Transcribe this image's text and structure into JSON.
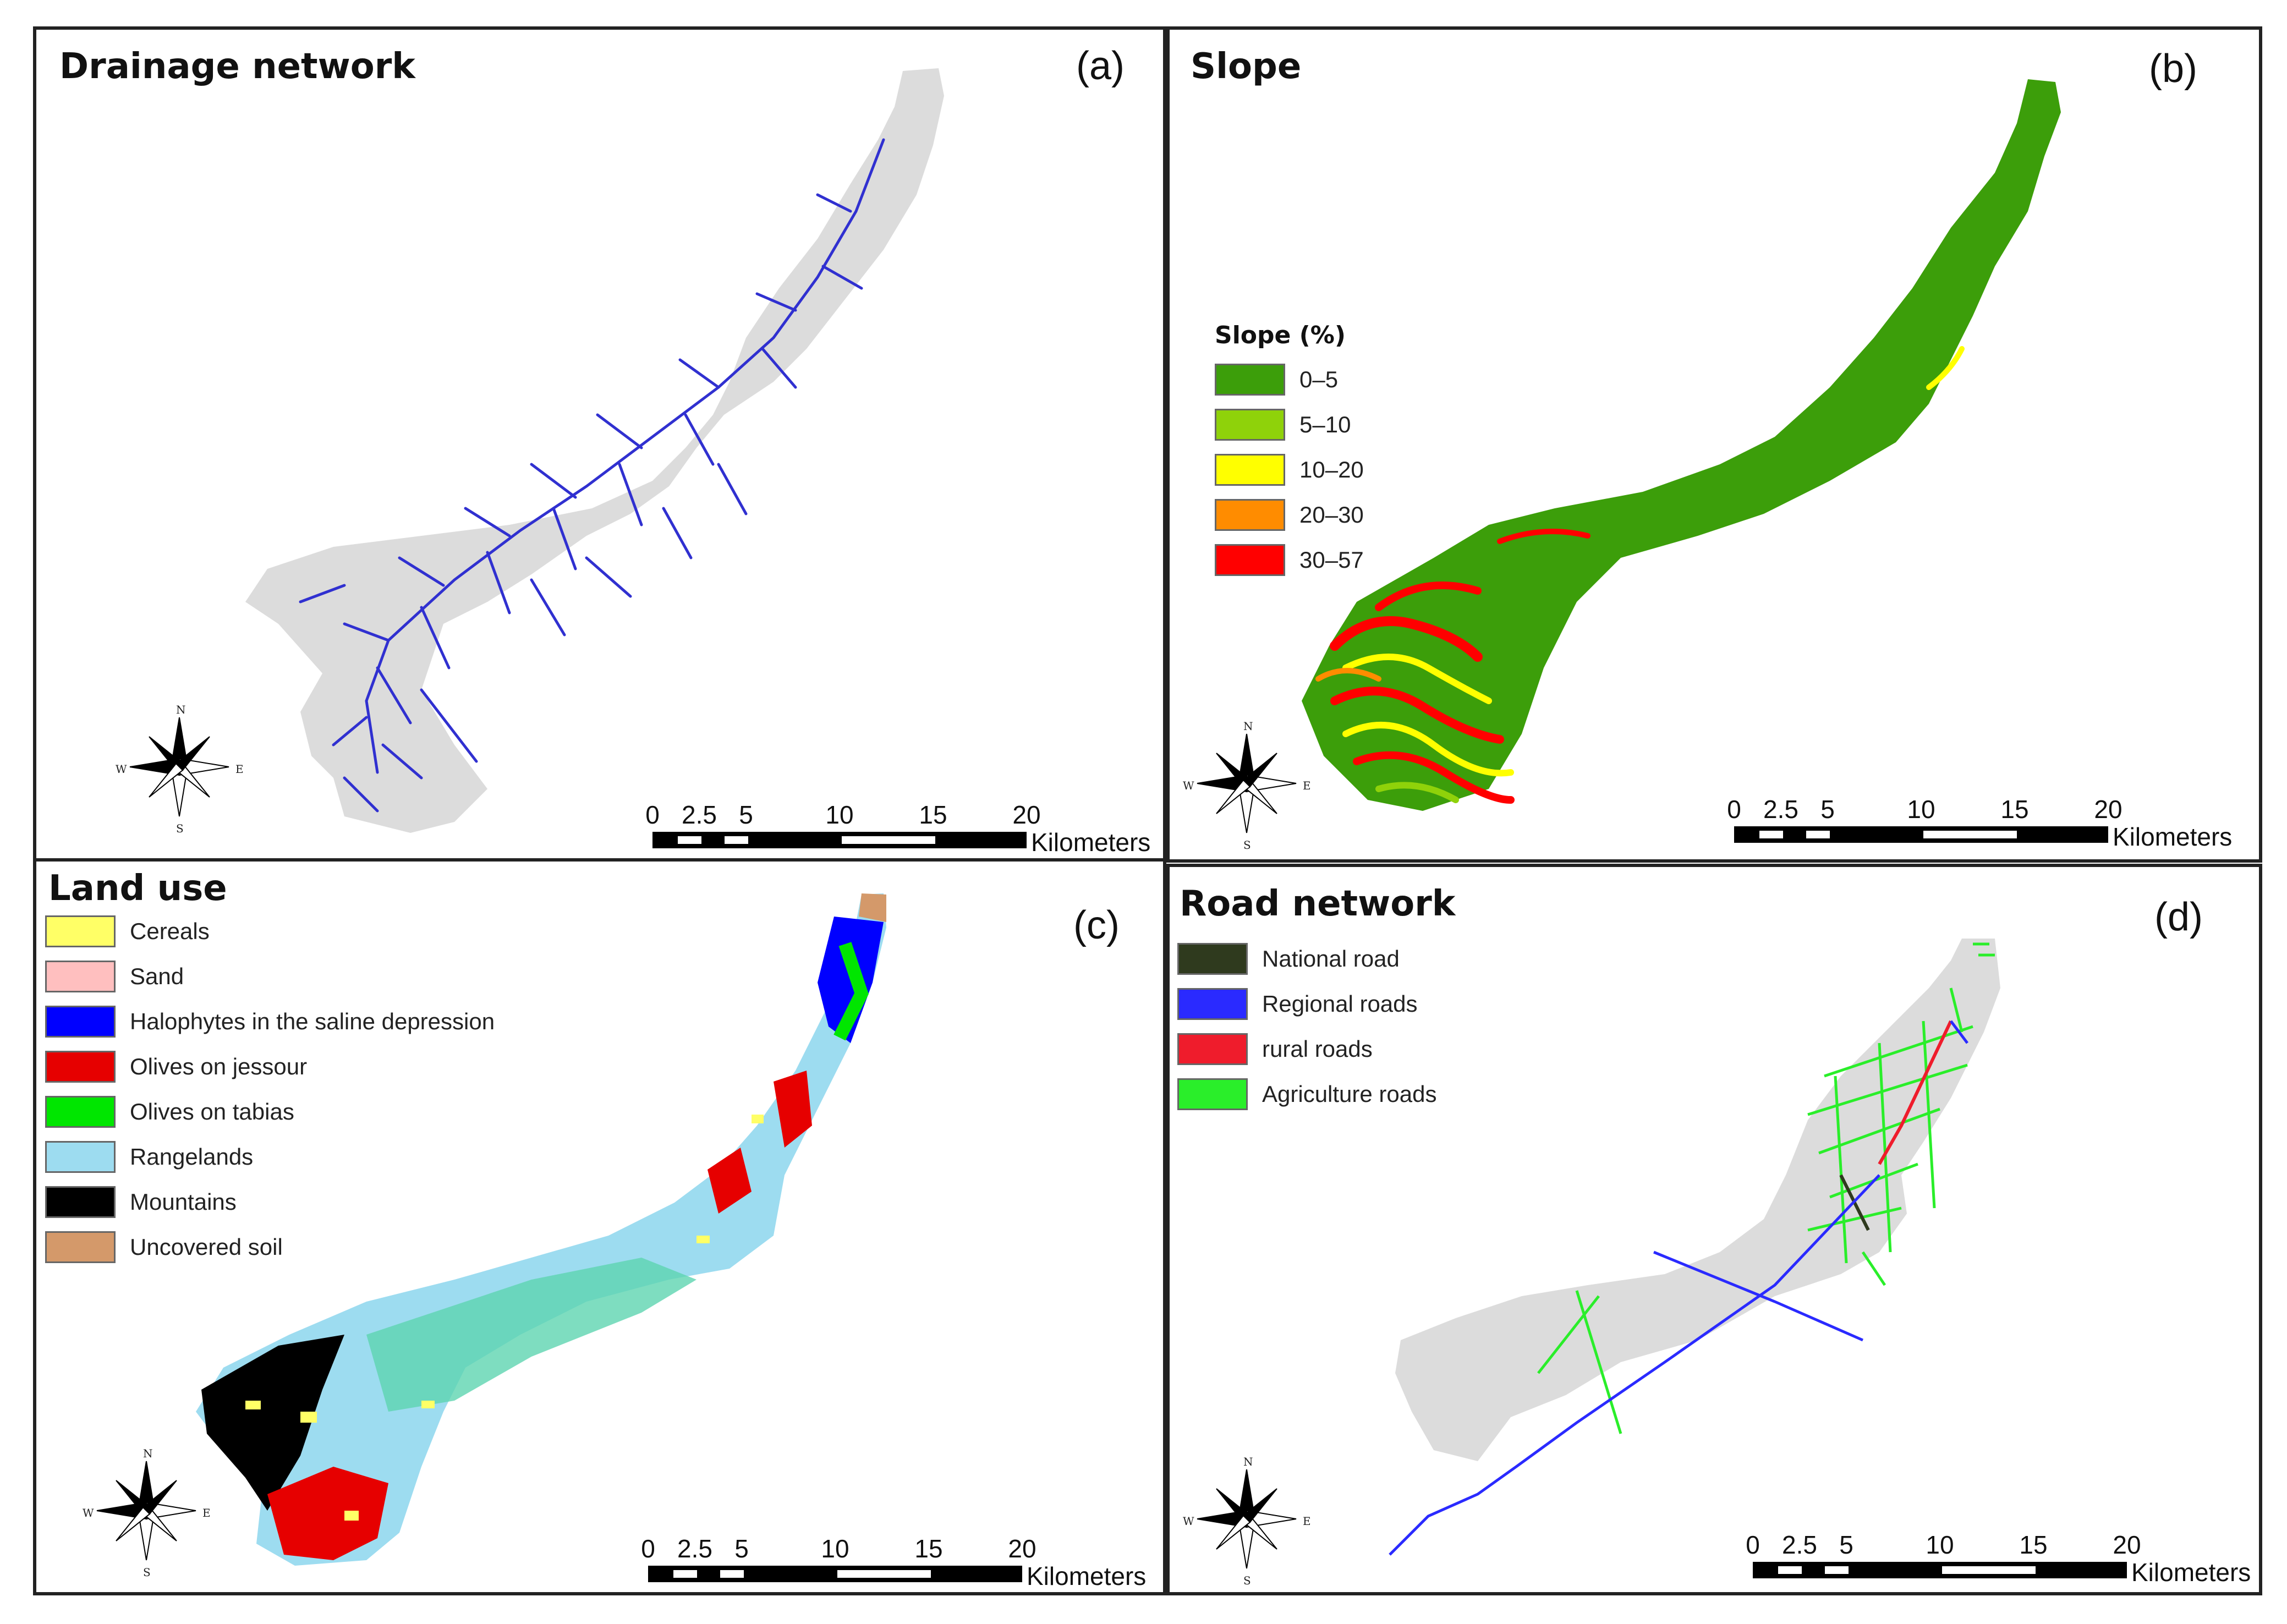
{
  "panels": {
    "a": {
      "title": "Drainage network",
      "label": "(a)"
    },
    "b": {
      "title": "Slope",
      "label": "(b)",
      "legend_title": "Slope (%)",
      "legend": [
        {
          "label": "0–5",
          "color": "#3c9e0a"
        },
        {
          "label": "5–10",
          "color": "#8fd20a"
        },
        {
          "label": "10–20",
          "color": "#ffff00"
        },
        {
          "label": "20–30",
          "color": "#ff8c00"
        },
        {
          "label": "30–57",
          "color": "#ff0000"
        }
      ]
    },
    "c": {
      "title": "Land use",
      "label": "(c)",
      "legend": [
        {
          "label": "Cereals",
          "color": "#ffff66"
        },
        {
          "label": "Sand",
          "color": "#ffbfbf"
        },
        {
          "label": "Halophytes in the saline depression",
          "color": "#0000ff"
        },
        {
          "label": "Olives on jessour",
          "color": "#e60000"
        },
        {
          "label": "Olives on tabias",
          "color": "#00e600"
        },
        {
          "label": "Rangelands",
          "color": "#9ddcf0"
        },
        {
          "label": "Mountains",
          "color": "#000000"
        },
        {
          "label": "Uncovered soil",
          "color": "#d4996a"
        }
      ]
    },
    "d": {
      "title": "Road network",
      "label": "(d)",
      "legend": [
        {
          "label": "National road",
          "color": "#2f3a1e"
        },
        {
          "label": "Regional roads",
          "color": "#2a2aff"
        },
        {
          "label": "rural roads",
          "color": "#ef1c2c"
        },
        {
          "label": "Agriculture roads",
          "color": "#2aee2a"
        }
      ]
    }
  },
  "scale": {
    "ticks": [
      "0",
      "2.5",
      "5",
      "10",
      "15",
      "20"
    ],
    "unit": "Kilometers"
  },
  "compass": {
    "n": "N",
    "s": "S",
    "e": "E",
    "w": "W"
  },
  "colors": {
    "basin_fill": "#dcdcdc",
    "stream": "#3030d0",
    "slope_base": "#3c9e0a"
  }
}
